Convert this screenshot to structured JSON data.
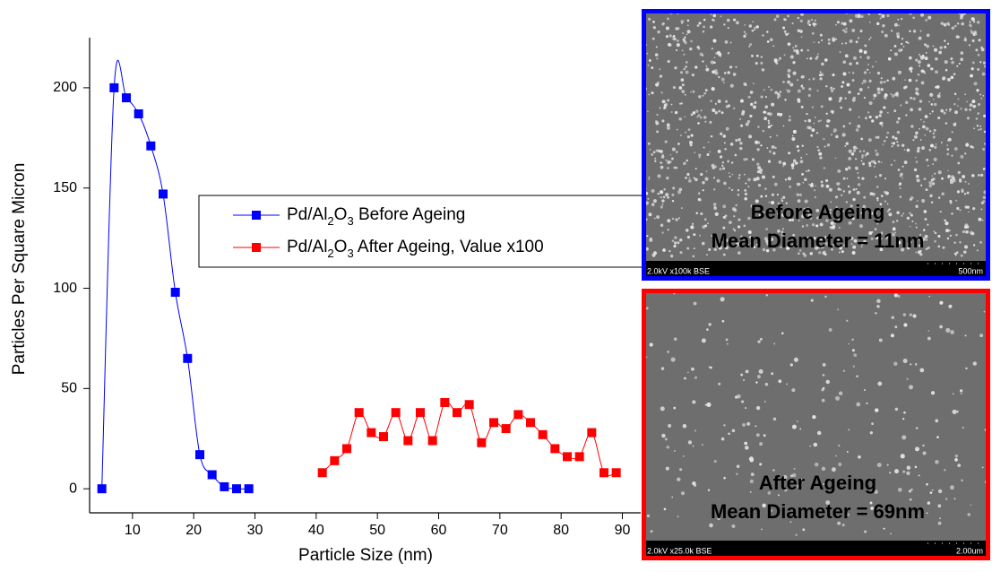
{
  "chart_data": {
    "type": "line",
    "x_label": "Particle Size (nm)",
    "y_label": "Particles Per Square Micron",
    "xlim": [
      3,
      93
    ],
    "ylim": [
      -12,
      225
    ],
    "xticks": [
      10,
      20,
      30,
      40,
      50,
      60,
      70,
      80,
      90
    ],
    "yticks": [
      0,
      50,
      100,
      150,
      200
    ],
    "legend": "top-center",
    "series": [
      {
        "name": "Pd/Al2O3 Before Ageing",
        "color": "#0000ff",
        "x": [
          5,
          7,
          9,
          11,
          13,
          15,
          17,
          19,
          21,
          23,
          25,
          27,
          29
        ],
        "values": [
          0,
          200,
          195,
          187,
          171,
          147,
          98,
          65,
          17,
          7,
          1,
          0,
          0
        ]
      },
      {
        "name": "Pd/Al2O3 After Ageing, Value x100",
        "color": "#ff0000",
        "x": [
          41,
          43,
          45,
          47,
          49,
          51,
          53,
          55,
          57,
          59,
          61,
          63,
          65,
          67,
          69,
          71,
          73,
          75,
          77,
          79,
          81,
          83,
          85,
          87,
          89
        ],
        "values": [
          8,
          14,
          20,
          38,
          28,
          26,
          38,
          24,
          38,
          24,
          43,
          38,
          42,
          23,
          33,
          30,
          37,
          33,
          27,
          20,
          16,
          16,
          28,
          8,
          8
        ]
      }
    ]
  },
  "images": [
    {
      "border": "#0000ff",
      "caption": [
        "Before Ageing",
        "Mean Diameter = 11nm"
      ],
      "info": "2.0kV x100k BSE",
      "scale": "500nm"
    },
    {
      "border": "#ff0000",
      "caption": [
        "After Ageing",
        "Mean Diameter = 69nm"
      ],
      "info": "2.0kV x25.0k BSE",
      "scale": "2.00um"
    }
  ]
}
